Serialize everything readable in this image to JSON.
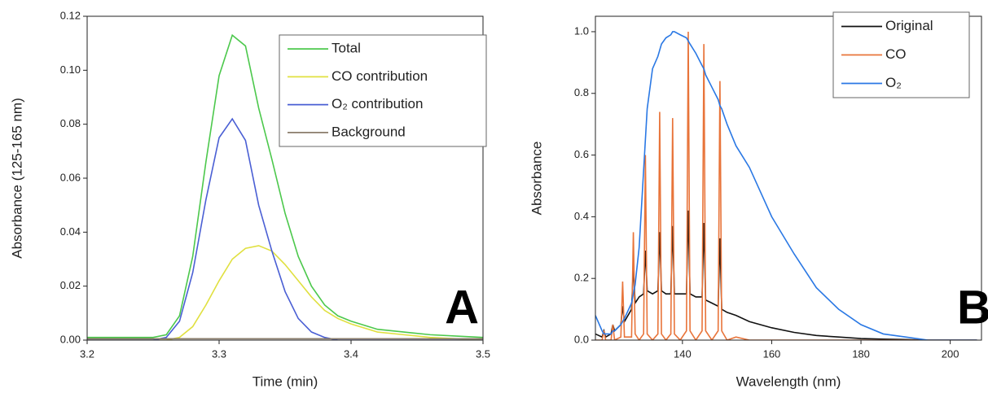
{
  "chart_data": [
    {
      "type": "line",
      "annotation": "A",
      "x_label": "Time (min)",
      "y_label": "Absorbance (125-165 nm)",
      "x": [
        3.2,
        3.24,
        3.25,
        3.26,
        3.27,
        3.28,
        3.29,
        3.3,
        3.31,
        3.32,
        3.33,
        3.34,
        3.35,
        3.36,
        3.37,
        3.38,
        3.39,
        3.4,
        3.42,
        3.44,
        3.46,
        3.48,
        3.5
      ],
      "series": [
        {
          "name": "Total",
          "color": "#4cc84c",
          "values": [
            0.001,
            0.001,
            0.001,
            0.002,
            0.009,
            0.031,
            0.066,
            0.098,
            0.113,
            0.109,
            0.086,
            0.067,
            0.047,
            0.031,
            0.02,
            0.013,
            0.009,
            0.007,
            0.004,
            0.003,
            0.002,
            0.0015,
            0.001
          ]
        },
        {
          "name": "CO contribution",
          "color": "#e0e040",
          "values": [
            0,
            0,
            0,
            0,
            0.001,
            0.005,
            0.013,
            0.022,
            0.03,
            0.034,
            0.035,
            0.033,
            0.028,
            0.022,
            0.016,
            0.011,
            0.008,
            0.006,
            0.003,
            0.002,
            0.001,
            0.0005,
            0
          ]
        },
        {
          "name": "O₂ contribution",
          "color": "#4a5fd4",
          "values": [
            0,
            0,
            0,
            0.001,
            0.007,
            0.025,
            0.052,
            0.075,
            0.082,
            0.074,
            0.05,
            0.033,
            0.018,
            0.008,
            0.003,
            0.001,
            0,
            0,
            0,
            0,
            0,
            0,
            0
          ]
        },
        {
          "name": "Background",
          "color": "#8b7d6b",
          "values": [
            0.0005,
            0.0005,
            0.0005,
            0.0005,
            0.0005,
            0.0005,
            0.0005,
            0.0005,
            0.0005,
            0.0005,
            0.0005,
            0.0005,
            0.0005,
            0.0005,
            0.0005,
            0.0005,
            0.0005,
            0.0005,
            0.0005,
            0.0005,
            0.0005,
            0.0005,
            0.0005
          ]
        }
      ],
      "xlim": [
        3.2,
        3.5
      ],
      "xticks": [
        3.2,
        3.3,
        3.4,
        3.5
      ],
      "ylim": [
        0,
        0.12
      ],
      "yticks": [
        {
          "value": 0,
          "label": "0.00"
        },
        {
          "value": 0.02,
          "label": "0.02"
        },
        {
          "value": 0.04,
          "label": "0.04"
        },
        {
          "value": 0.06,
          "label": "0.06"
        },
        {
          "value": 0.08,
          "label": "0.08"
        },
        {
          "value": 0.1,
          "label": "0.10"
        },
        {
          "value": 0.12,
          "label": "0.12"
        }
      ],
      "legend": "upper right"
    },
    {
      "type": "line",
      "annotation": "B",
      "x_label": "Wavelength (nm)",
      "y_label": "Absorbance",
      "x": [
        120.5,
        122.0,
        122.4,
        122.8,
        124.0,
        124.4,
        124.8,
        126.2,
        126.6,
        127.0,
        128.6,
        129.0,
        129.4,
        130.3,
        131.3,
        131.7,
        132.1,
        133.3,
        134.5,
        134.9,
        135.3,
        136.3,
        137.4,
        137.8,
        138.2,
        139.5,
        140.9,
        141.3,
        141.7,
        143.0,
        144.4,
        144.8,
        145.2,
        146.6,
        148.0,
        148.4,
        148.8,
        150,
        152,
        155,
        160,
        165,
        170,
        175,
        180,
        185,
        190,
        195,
        200,
        206
      ],
      "series": [
        {
          "name": "Original",
          "color": "#111111",
          "values": [
            0.02,
            0.01,
            0.03,
            0.01,
            0.02,
            0.05,
            0.03,
            0.05,
            0.11,
            0.06,
            0.1,
            0.24,
            0.12,
            0.14,
            0.15,
            0.29,
            0.16,
            0.15,
            0.16,
            0.35,
            0.16,
            0.15,
            0.15,
            0.37,
            0.15,
            0.15,
            0.15,
            0.42,
            0.15,
            0.14,
            0.14,
            0.38,
            0.13,
            0.12,
            0.11,
            0.33,
            0.1,
            0.09,
            0.08,
            0.06,
            0.04,
            0.025,
            0.015,
            0.01,
            0.005,
            0.003,
            0.002,
            0,
            0,
            0
          ]
        },
        {
          "name": "CO",
          "color": "#e8743a",
          "values": [
            0,
            0,
            0.03,
            0,
            0,
            0.05,
            0,
            0.01,
            0.19,
            0.01,
            0.01,
            0.35,
            0.02,
            0,
            0.02,
            0.6,
            0.02,
            0,
            0.02,
            0.74,
            0.02,
            0,
            0.02,
            0.72,
            0.02,
            0,
            0.03,
            1.0,
            0.03,
            0,
            0.03,
            0.96,
            0.03,
            0,
            0.03,
            0.84,
            0.03,
            0,
            0.01,
            0,
            0,
            0,
            0,
            0,
            0,
            0,
            0,
            0,
            0,
            0
          ]
        },
        {
          "name": "O₂",
          "color": "#2a78e4",
          "values": [
            0.08,
            0.03,
            0.02,
            0.02,
            0.02,
            0.03,
            0.03,
            0.05,
            0.06,
            0.07,
            0.12,
            0.15,
            0.18,
            0.3,
            0.55,
            0.65,
            0.75,
            0.88,
            0.92,
            0.94,
            0.96,
            0.98,
            0.99,
            1.0,
            1.0,
            0.99,
            0.98,
            0.97,
            0.96,
            0.93,
            0.89,
            0.88,
            0.86,
            0.82,
            0.78,
            0.76,
            0.75,
            0.7,
            0.63,
            0.56,
            0.4,
            0.28,
            0.17,
            0.1,
            0.05,
            0.02,
            0.01,
            0,
            0,
            0
          ]
        }
      ],
      "xlim": [
        120.5,
        207
      ],
      "xticks": [
        140,
        160,
        180,
        200
      ],
      "ylim": [
        0,
        1.05
      ],
      "yticks": [
        {
          "value": 0,
          "label": "0.0"
        },
        0.2,
        0.4,
        0.6,
        0.8,
        {
          "value": 1,
          "label": "1.0"
        }
      ],
      "legend": "upper right"
    }
  ]
}
